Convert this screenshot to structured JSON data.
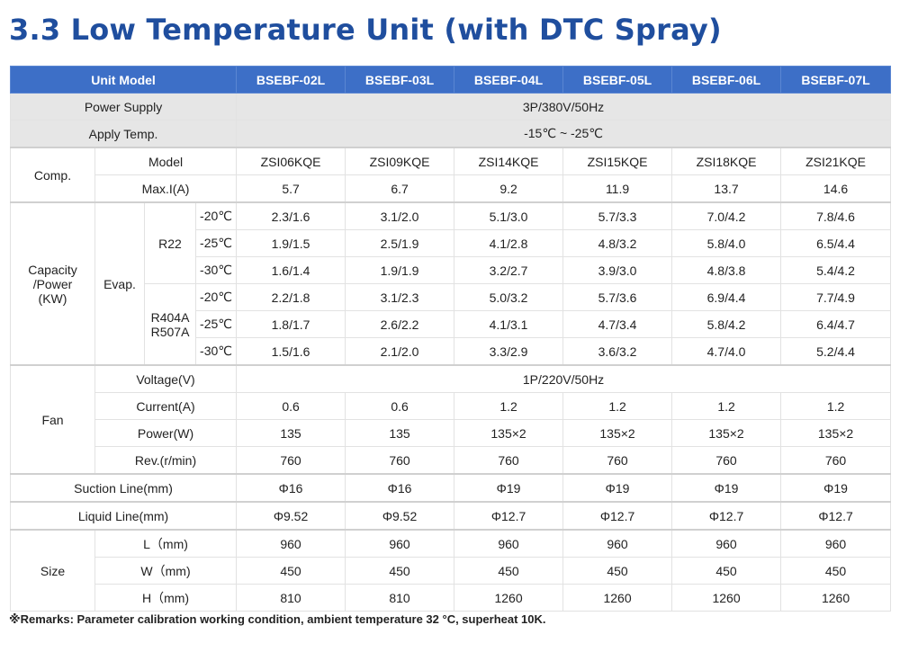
{
  "title": "3.3 Low Temperature Unit (with DTC Spray)",
  "header": {
    "unit_model": "Unit Model",
    "models": [
      "BSEBF-02L",
      "BSEBF-03L",
      "BSEBF-04L",
      "BSEBF-05L",
      "BSEBF-06L",
      "BSEBF-07L"
    ]
  },
  "power_supply": {
    "label": "Power Supply",
    "value": "3P/380V/50Hz"
  },
  "apply_temp": {
    "label": "Apply Temp.",
    "value": "-15℃ ~ -25℃"
  },
  "comp": {
    "label": "Comp.",
    "model": {
      "label": "Model",
      "values": [
        "ZSI06KQE",
        "ZSI09KQE",
        "ZSI14KQE",
        "ZSI15KQE",
        "ZSI18KQE",
        "ZSI21KQE"
      ]
    },
    "max_current": {
      "label": "Max.I(A)",
      "values": [
        "5.7",
        "6.7",
        "9.2",
        "11.9",
        "13.7",
        "14.6"
      ]
    }
  },
  "capacity": {
    "label_line1": "Capacity",
    "label_line2": "/Power",
    "label_line3": "(KW)",
    "evap_label": "Evap.",
    "r22": {
      "label": "R22",
      "rows": [
        {
          "temp": "-20℃",
          "values": [
            "2.3/1.6",
            "3.1/2.0",
            "5.1/3.0",
            "5.7/3.3",
            "7.0/4.2",
            "7.8/4.6"
          ]
        },
        {
          "temp": "-25℃",
          "values": [
            "1.9/1.5",
            "2.5/1.9",
            "4.1/2.8",
            "4.8/3.2",
            "5.8/4.0",
            "6.5/4.4"
          ]
        },
        {
          "temp": "-30℃",
          "values": [
            "1.6/1.4",
            "1.9/1.9",
            "3.2/2.7",
            "3.9/3.0",
            "4.8/3.8",
            "5.4/4.2"
          ]
        }
      ]
    },
    "r404a": {
      "label_line1": "R404A",
      "label_line2": "R507A",
      "rows": [
        {
          "temp": "-20℃",
          "values": [
            "2.2/1.8",
            "3.1/2.3",
            "5.0/3.2",
            "5.7/3.6",
            "6.9/4.4",
            "7.7/4.9"
          ]
        },
        {
          "temp": "-25℃",
          "values": [
            "1.8/1.7",
            "2.6/2.2",
            "4.1/3.1",
            "4.7/3.4",
            "5.8/4.2",
            "6.4/4.7"
          ]
        },
        {
          "temp": "-30℃",
          "values": [
            "1.5/1.6",
            "2.1/2.0",
            "3.3/2.9",
            "3.6/3.2",
            "4.7/4.0",
            "5.2/4.4"
          ]
        }
      ]
    }
  },
  "fan": {
    "label": "Fan",
    "voltage": {
      "label": "Voltage(V)",
      "value": "1P/220V/50Hz"
    },
    "current": {
      "label": "Current(A)",
      "values": [
        "0.6",
        "0.6",
        "1.2",
        "1.2",
        "1.2",
        "1.2"
      ]
    },
    "power": {
      "label": "Power(W)",
      "values": [
        "135",
        "135",
        "135×2",
        "135×2",
        "135×2",
        "135×2"
      ]
    },
    "rev": {
      "label": "Rev.(r/min)",
      "values": [
        "760",
        "760",
        "760",
        "760",
        "760",
        "760"
      ]
    }
  },
  "suction": {
    "label": "Suction Line(mm)",
    "values": [
      "Φ16",
      "Φ16",
      "Φ19",
      "Φ19",
      "Φ19",
      "Φ19"
    ]
  },
  "liquid": {
    "label": "Liquid Line(mm)",
    "values": [
      "Φ9.52",
      "Φ9.52",
      "Φ12.7",
      "Φ12.7",
      "Φ12.7",
      "Φ12.7"
    ]
  },
  "size": {
    "label": "Size",
    "l": {
      "label": "L（mm)",
      "values": [
        "960",
        "960",
        "960",
        "960",
        "960",
        "960"
      ]
    },
    "w": {
      "label": "W（mm)",
      "values": [
        "450",
        "450",
        "450",
        "450",
        "450",
        "450"
      ]
    },
    "h": {
      "label": "H（mm)",
      "values": [
        "810",
        "810",
        "1260",
        "1260",
        "1260",
        "1260"
      ]
    }
  },
  "remarks": "※Remarks: Parameter calibration working condition, ambient temperature 32 °C, superheat 10K.",
  "colors": {
    "title": "#1f4e9e",
    "header_bg": "#3d6fc7",
    "grey_row": "#e6e6e6"
  }
}
